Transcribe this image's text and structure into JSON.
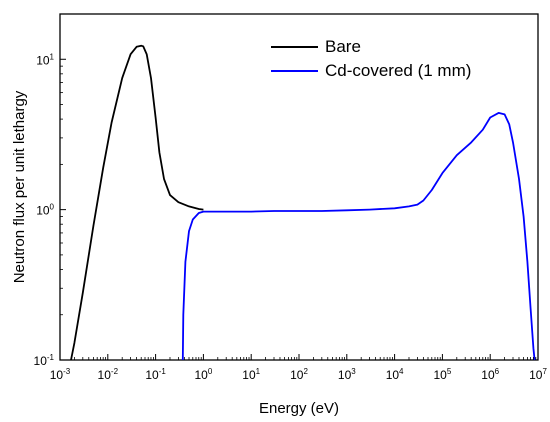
{
  "chart_data": {
    "type": "line",
    "xlabel": "Energy (eV)",
    "ylabel": "Neutron flux per unit lethargy",
    "x_scale": "log",
    "y_scale": "log",
    "xlim": [
      0.001,
      10000000
    ],
    "ylim": [
      0.1,
      20
    ],
    "x_ticks": [
      {
        "base": "10",
        "exp": "-3",
        "value": 0.001
      },
      {
        "base": "10",
        "exp": "-2",
        "value": 0.01
      },
      {
        "base": "10",
        "exp": "-1",
        "value": 0.1
      },
      {
        "base": "10",
        "exp": "0",
        "value": 1
      },
      {
        "base": "10",
        "exp": "1",
        "value": 10
      },
      {
        "base": "10",
        "exp": "2",
        "value": 100
      },
      {
        "base": "10",
        "exp": "3",
        "value": 1000
      },
      {
        "base": "10",
        "exp": "4",
        "value": 10000
      },
      {
        "base": "10",
        "exp": "5",
        "value": 100000
      },
      {
        "base": "10",
        "exp": "6",
        "value": 1000000
      },
      {
        "base": "10",
        "exp": "7",
        "value": 10000000
      }
    ],
    "y_ticks": [
      {
        "base": "10",
        "exp": "-1",
        "value": 0.1
      },
      {
        "base": "10",
        "exp": "0",
        "value": 1
      },
      {
        "base": "10",
        "exp": "1",
        "value": 10
      }
    ],
    "grid": false,
    "legend_position": "top-right",
    "series": [
      {
        "name": "Bare",
        "color": "#000000",
        "x": [
          0.0017,
          0.002,
          0.003,
          0.005,
          0.008,
          0.012,
          0.02,
          0.03,
          0.04,
          0.05,
          0.055,
          0.065,
          0.08,
          0.1,
          0.12,
          0.15,
          0.2,
          0.3,
          0.5,
          0.8,
          1.0
        ],
        "y": [
          0.1,
          0.13,
          0.28,
          0.78,
          1.9,
          3.8,
          7.5,
          10.8,
          12.1,
          12.3,
          12.2,
          10.8,
          7.5,
          4.1,
          2.4,
          1.6,
          1.25,
          1.12,
          1.05,
          1.01,
          1.0
        ]
      },
      {
        "name": "Cd-covered (1 mm)",
        "color": "#0000ff",
        "x": [
          0.37,
          0.38,
          0.42,
          0.5,
          0.6,
          0.8,
          1.0,
          1.5,
          3,
          10,
          30,
          100,
          300,
          1000,
          3000,
          10000,
          20000,
          30000,
          40000,
          60000,
          100000,
          200000,
          400000,
          700000,
          1000000,
          1500000,
          2000000,
          2500000,
          3000000,
          4000000,
          5000000,
          6000000,
          7000000,
          8000000,
          8500000
        ],
        "y": [
          0.1,
          0.2,
          0.45,
          0.72,
          0.86,
          0.95,
          0.97,
          0.97,
          0.97,
          0.97,
          0.98,
          0.98,
          0.98,
          0.99,
          1.0,
          1.02,
          1.05,
          1.08,
          1.15,
          1.35,
          1.75,
          2.3,
          2.8,
          3.4,
          4.1,
          4.4,
          4.3,
          3.7,
          2.8,
          1.6,
          0.9,
          0.45,
          0.22,
          0.12,
          0.1
        ]
      }
    ]
  }
}
